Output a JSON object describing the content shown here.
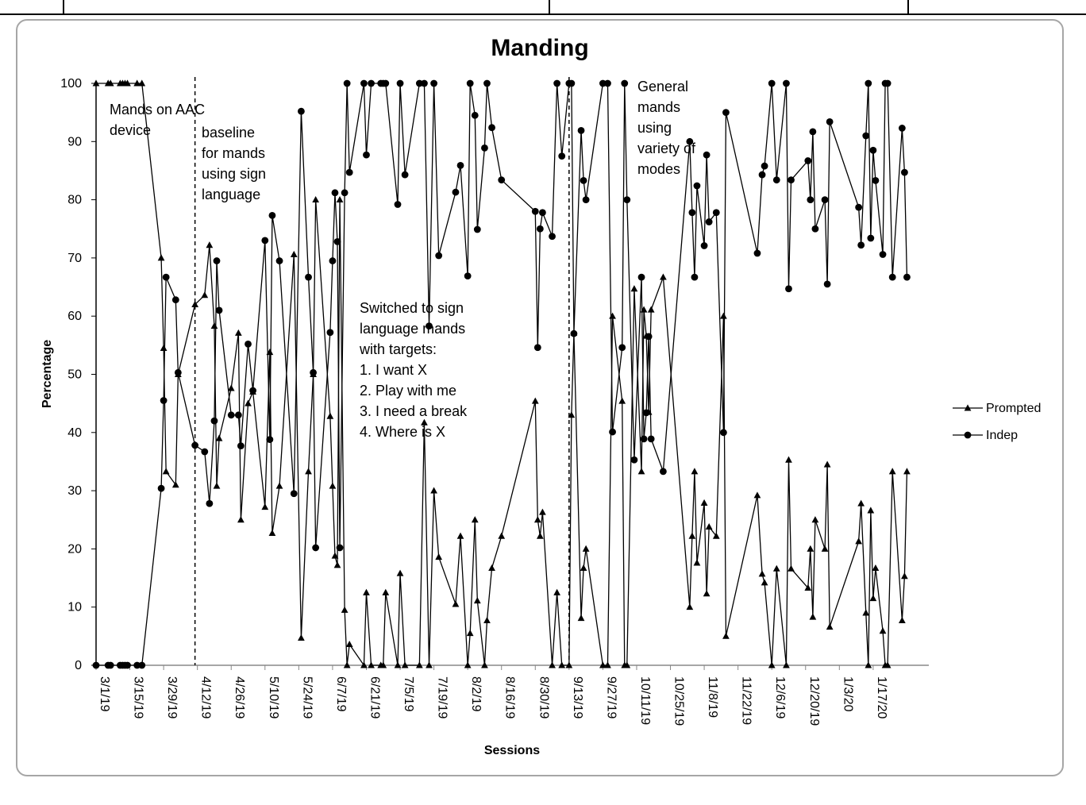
{
  "chart_data": {
    "type": "line",
    "title": "Manding",
    "xlabel": "Sessions",
    "ylabel": "Percentage",
    "ylim": [
      0,
      100
    ],
    "yticks": [
      0,
      10,
      20,
      30,
      40,
      50,
      60,
      70,
      80,
      90,
      100
    ],
    "xlim": [
      "2019-03-01",
      "2020-01-31"
    ],
    "xtick_labels": [
      "3/1/19",
      "3/15/19",
      "3/29/19",
      "4/12/19",
      "4/26/19",
      "5/10/19",
      "5/24/19",
      "6/7/19",
      "6/21/19",
      "7/5/19",
      "7/19/19",
      "8/2/19",
      "8/16/19",
      "8/30/19",
      "9/13/19",
      "9/27/19",
      "10/11/19",
      "10/25/19",
      "11/8/19",
      "11/22/19",
      "12/6/19",
      "12/20/19",
      "1/3/20",
      "1/17/20"
    ],
    "xtick_dates": [
      "2019-03-01",
      "2019-03-15",
      "2019-03-29",
      "2019-04-12",
      "2019-04-26",
      "2019-05-10",
      "2019-05-24",
      "2019-06-07",
      "2019-06-21",
      "2019-07-05",
      "2019-07-19",
      "2019-08-02",
      "2019-08-16",
      "2019-08-30",
      "2019-09-13",
      "2019-09-27",
      "2019-10-11",
      "2019-10-25",
      "2019-11-08",
      "2019-11-22",
      "2019-12-06",
      "2019-12-20",
      "2020-01-03",
      "2020-01-17"
    ],
    "grid": false,
    "legend_position": "right",
    "phase_lines": [
      "2019-04-11",
      "2019-09-13"
    ],
    "annotations": [
      {
        "lines": [
          "Mands on AAC",
          "device"
        ]
      },
      {
        "lines": [
          "baseline",
          "for mands",
          "using sign",
          "language"
        ]
      },
      {
        "lines": [
          "Switched to sign",
          "language mands",
          "with targets:",
          "1. I want X",
          "2. Play with me",
          "3. I need a break",
          "4. Where is X"
        ]
      },
      {
        "lines": [
          "General",
          "mands",
          "using",
          "variety of",
          "modes"
        ]
      }
    ],
    "series": [
      {
        "name": "Prompted",
        "marker": "triangle",
        "points": [
          [
            "2019-03-01",
            100
          ],
          [
            "2019-03-06",
            100
          ],
          [
            "2019-03-07",
            100
          ],
          [
            "2019-03-11",
            100
          ],
          [
            "2019-03-12",
            100
          ],
          [
            "2019-03-13",
            100
          ],
          [
            "2019-03-14",
            100
          ],
          [
            "2019-03-18",
            100
          ],
          [
            "2019-03-20",
            100
          ],
          [
            "2019-03-28",
            70
          ],
          [
            "2019-03-29",
            54.5
          ],
          [
            "2019-03-30",
            33.3
          ],
          [
            "2019-04-03",
            31
          ],
          [
            "2019-04-04",
            50
          ],
          [
            "2019-04-11",
            62
          ],
          [
            "2019-04-15",
            63.6
          ],
          [
            "2019-04-17",
            72.2
          ],
          [
            "2019-04-19",
            58.3
          ],
          [
            "2019-04-20",
            30.8
          ],
          [
            "2019-04-21",
            39
          ],
          [
            "2019-04-26",
            47.6
          ],
          [
            "2019-04-29",
            57.1
          ],
          [
            "2019-04-30",
            25
          ],
          [
            "2019-05-03",
            45
          ],
          [
            "2019-05-05",
            47
          ],
          [
            "2019-05-10",
            27.2
          ],
          [
            "2019-05-12",
            53.8
          ],
          [
            "2019-05-13",
            22.7
          ],
          [
            "2019-05-16",
            30.8
          ],
          [
            "2019-05-22",
            70.6
          ],
          [
            "2019-05-25",
            4.7
          ],
          [
            "2019-05-28",
            33.3
          ],
          [
            "2019-05-30",
            50
          ],
          [
            "2019-05-31",
            80
          ],
          [
            "2019-06-06",
            42.8
          ],
          [
            "2019-06-07",
            30.8
          ],
          [
            "2019-06-08",
            18.8
          ],
          [
            "2019-06-09",
            17.2
          ],
          [
            "2019-06-10",
            80
          ],
          [
            "2019-06-12",
            9.5
          ],
          [
            "2019-06-13",
            0
          ],
          [
            "2019-06-14",
            3.6
          ],
          [
            "2019-06-20",
            0
          ],
          [
            "2019-06-21",
            12.5
          ],
          [
            "2019-06-23",
            0
          ],
          [
            "2019-06-27",
            0
          ],
          [
            "2019-06-28",
            0
          ],
          [
            "2019-06-29",
            12.5
          ],
          [
            "2019-07-04",
            0
          ],
          [
            "2019-07-05",
            15.8
          ],
          [
            "2019-07-07",
            0
          ],
          [
            "2019-07-13",
            0
          ],
          [
            "2019-07-15",
            41.7
          ],
          [
            "2019-07-17",
            0
          ],
          [
            "2019-07-19",
            30
          ],
          [
            "2019-07-21",
            18.6
          ],
          [
            "2019-07-28",
            10.5
          ],
          [
            "2019-07-30",
            22.2
          ],
          [
            "2019-08-02",
            0
          ],
          [
            "2019-08-03",
            5.5
          ],
          [
            "2019-08-05",
            25
          ],
          [
            "2019-08-06",
            11.1
          ],
          [
            "2019-08-09",
            0
          ],
          [
            "2019-08-10",
            7.7
          ],
          [
            "2019-08-12",
            16.7
          ],
          [
            "2019-08-16",
            22.2
          ],
          [
            "2019-08-30",
            45.4
          ],
          [
            "2019-08-31",
            25
          ],
          [
            "2019-09-01",
            22.2
          ],
          [
            "2019-09-02",
            26.3
          ],
          [
            "2019-09-06",
            0
          ],
          [
            "2019-09-08",
            12.5
          ],
          [
            "2019-09-10",
            0
          ],
          [
            "2019-09-13",
            0
          ],
          [
            "2019-09-14",
            43
          ],
          [
            "2019-09-15",
            57.1
          ],
          [
            "2019-09-18",
            8.1
          ],
          [
            "2019-09-19",
            16.7
          ],
          [
            "2019-09-20",
            20
          ],
          [
            "2019-09-27",
            0
          ],
          [
            "2019-09-29",
            0
          ],
          [
            "2019-10-01",
            60
          ],
          [
            "2019-10-05",
            45.4
          ],
          [
            "2019-10-06",
            0
          ],
          [
            "2019-10-07",
            0
          ],
          [
            "2019-10-10",
            64.7
          ],
          [
            "2019-10-13",
            33.3
          ],
          [
            "2019-10-14",
            61.1
          ],
          [
            "2019-10-15",
            56.6
          ],
          [
            "2019-10-16",
            43.5
          ],
          [
            "2019-10-17",
            61.1
          ],
          [
            "2019-10-22",
            66.7
          ],
          [
            "2019-11-02",
            10
          ],
          [
            "2019-11-03",
            22.2
          ],
          [
            "2019-11-04",
            33.3
          ],
          [
            "2019-11-05",
            17.6
          ],
          [
            "2019-11-08",
            27.9
          ],
          [
            "2019-11-09",
            12.3
          ],
          [
            "2019-11-10",
            23.8
          ],
          [
            "2019-11-13",
            22.2
          ],
          [
            "2019-11-16",
            60
          ],
          [
            "2019-11-17",
            5
          ],
          [
            "2019-11-30",
            29.2
          ],
          [
            "2019-12-02",
            15.7
          ],
          [
            "2019-12-03",
            14.2
          ],
          [
            "2019-12-06",
            0
          ],
          [
            "2019-12-08",
            16.6
          ],
          [
            "2019-12-12",
            0
          ],
          [
            "2019-12-13",
            35.3
          ],
          [
            "2019-12-14",
            16.6
          ],
          [
            "2019-12-21",
            13.3
          ],
          [
            "2019-12-22",
            20
          ],
          [
            "2019-12-23",
            8.3
          ],
          [
            "2019-12-24",
            25
          ],
          [
            "2019-12-28",
            20
          ],
          [
            "2019-12-29",
            34.5
          ],
          [
            "2019-12-30",
            6.6
          ],
          [
            "2020-01-11",
            21.3
          ],
          [
            "2020-01-12",
            27.8
          ],
          [
            "2020-01-14",
            9
          ],
          [
            "2020-01-15",
            0
          ],
          [
            "2020-01-16",
            26.6
          ],
          [
            "2020-01-17",
            11.5
          ],
          [
            "2020-01-18",
            16.7
          ],
          [
            "2020-01-21",
            5.9
          ],
          [
            "2020-01-22",
            0
          ],
          [
            "2020-01-23",
            0
          ],
          [
            "2020-01-25",
            33.3
          ],
          [
            "2020-01-29",
            7.7
          ],
          [
            "2020-01-30",
            15.3
          ],
          [
            "2020-01-31",
            33.3
          ]
        ]
      },
      {
        "name": "Indep",
        "marker": "circle",
        "points": [
          [
            "2019-03-01",
            0
          ],
          [
            "2019-03-06",
            0
          ],
          [
            "2019-03-07",
            0
          ],
          [
            "2019-03-11",
            0
          ],
          [
            "2019-03-12",
            0
          ],
          [
            "2019-03-13",
            0
          ],
          [
            "2019-03-14",
            0
          ],
          [
            "2019-03-18",
            0
          ],
          [
            "2019-03-20",
            0
          ],
          [
            "2019-03-28",
            30.4
          ],
          [
            "2019-03-29",
            45.5
          ],
          [
            "2019-03-30",
            66.7
          ],
          [
            "2019-04-03",
            62.8
          ],
          [
            "2019-04-04",
            50.3
          ],
          [
            "2019-04-11",
            37.8
          ],
          [
            "2019-04-15",
            36.7
          ],
          [
            "2019-04-17",
            27.8
          ],
          [
            "2019-04-19",
            42
          ],
          [
            "2019-04-20",
            69.5
          ],
          [
            "2019-04-21",
            61
          ],
          [
            "2019-04-26",
            43
          ],
          [
            "2019-04-29",
            43
          ],
          [
            "2019-04-30",
            37.7
          ],
          [
            "2019-05-03",
            55.2
          ],
          [
            "2019-05-05",
            47.2
          ],
          [
            "2019-05-10",
            73
          ],
          [
            "2019-05-12",
            38.8
          ],
          [
            "2019-05-13",
            77.3
          ],
          [
            "2019-05-16",
            69.5
          ],
          [
            "2019-05-22",
            29.5
          ],
          [
            "2019-05-25",
            95.2
          ],
          [
            "2019-05-28",
            66.7
          ],
          [
            "2019-05-30",
            50.3
          ],
          [
            "2019-05-31",
            20.2
          ],
          [
            "2019-06-06",
            57.2
          ],
          [
            "2019-06-07",
            69.5
          ],
          [
            "2019-06-08",
            81.2
          ],
          [
            "2019-06-09",
            72.8
          ],
          [
            "2019-06-10",
            20.2
          ],
          [
            "2019-06-12",
            81.2
          ],
          [
            "2019-06-13",
            100
          ],
          [
            "2019-06-14",
            84.7
          ],
          [
            "2019-06-20",
            100
          ],
          [
            "2019-06-21",
            87.7
          ],
          [
            "2019-06-23",
            100
          ],
          [
            "2019-06-27",
            100
          ],
          [
            "2019-06-28",
            100
          ],
          [
            "2019-06-29",
            100
          ],
          [
            "2019-07-04",
            79.2
          ],
          [
            "2019-07-05",
            100
          ],
          [
            "2019-07-07",
            84.3
          ],
          [
            "2019-07-13",
            100
          ],
          [
            "2019-07-15",
            100
          ],
          [
            "2019-07-17",
            58.3
          ],
          [
            "2019-07-19",
            100
          ],
          [
            "2019-07-21",
            70.4
          ],
          [
            "2019-07-28",
            81.3
          ],
          [
            "2019-07-30",
            85.9
          ],
          [
            "2019-08-02",
            66.9
          ],
          [
            "2019-08-03",
            100
          ],
          [
            "2019-08-05",
            94.5
          ],
          [
            "2019-08-06",
            74.9
          ],
          [
            "2019-08-09",
            88.9
          ],
          [
            "2019-08-10",
            100
          ],
          [
            "2019-08-12",
            92.4
          ],
          [
            "2019-08-16",
            83.4
          ],
          [
            "2019-08-30",
            78
          ],
          [
            "2019-08-31",
            54.6
          ],
          [
            "2019-09-01",
            75
          ],
          [
            "2019-09-02",
            77.8
          ],
          [
            "2019-09-06",
            73.7
          ],
          [
            "2019-09-08",
            100
          ],
          [
            "2019-09-10",
            87.5
          ],
          [
            "2019-09-13",
            100
          ],
          [
            "2019-09-14",
            100
          ],
          [
            "2019-09-15",
            57
          ],
          [
            "2019-09-18",
            91.9
          ],
          [
            "2019-09-19",
            83.3
          ],
          [
            "2019-09-20",
            80
          ],
          [
            "2019-09-27",
            100
          ],
          [
            "2019-09-29",
            100
          ],
          [
            "2019-10-01",
            40.1
          ],
          [
            "2019-10-05",
            54.6
          ],
          [
            "2019-10-06",
            100
          ],
          [
            "2019-10-07",
            80
          ],
          [
            "2019-10-10",
            35.3
          ],
          [
            "2019-10-13",
            66.7
          ],
          [
            "2019-10-14",
            38.9
          ],
          [
            "2019-10-15",
            43.4
          ],
          [
            "2019-10-16",
            56.5
          ],
          [
            "2019-10-17",
            38.9
          ],
          [
            "2019-10-22",
            33.3
          ],
          [
            "2019-11-02",
            90
          ],
          [
            "2019-11-03",
            77.8
          ],
          [
            "2019-11-04",
            66.7
          ],
          [
            "2019-11-05",
            82.4
          ],
          [
            "2019-11-08",
            72.1
          ],
          [
            "2019-11-09",
            87.7
          ],
          [
            "2019-11-10",
            76.2
          ],
          [
            "2019-11-13",
            77.8
          ],
          [
            "2019-11-16",
            40
          ],
          [
            "2019-11-17",
            95
          ],
          [
            "2019-11-30",
            70.8
          ],
          [
            "2019-12-02",
            84.3
          ],
          [
            "2019-12-03",
            85.8
          ],
          [
            "2019-12-06",
            100
          ],
          [
            "2019-12-08",
            83.4
          ],
          [
            "2019-12-12",
            100
          ],
          [
            "2019-12-13",
            64.7
          ],
          [
            "2019-12-14",
            83.4
          ],
          [
            "2019-12-21",
            86.7
          ],
          [
            "2019-12-22",
            80
          ],
          [
            "2019-12-23",
            91.7
          ],
          [
            "2019-12-24",
            75
          ],
          [
            "2019-12-28",
            80
          ],
          [
            "2019-12-29",
            65.5
          ],
          [
            "2019-12-30",
            93.4
          ],
          [
            "2020-01-11",
            78.7
          ],
          [
            "2020-01-12",
            72.2
          ],
          [
            "2020-01-14",
            91
          ],
          [
            "2020-01-15",
            100
          ],
          [
            "2020-01-16",
            73.4
          ],
          [
            "2020-01-17",
            88.5
          ],
          [
            "2020-01-18",
            83.3
          ],
          [
            "2020-01-21",
            70.6
          ],
          [
            "2020-01-22",
            100
          ],
          [
            "2020-01-23",
            100
          ],
          [
            "2020-01-25",
            66.7
          ],
          [
            "2020-01-29",
            92.3
          ],
          [
            "2020-01-30",
            84.7
          ],
          [
            "2020-01-31",
            66.7
          ]
        ]
      }
    ]
  }
}
